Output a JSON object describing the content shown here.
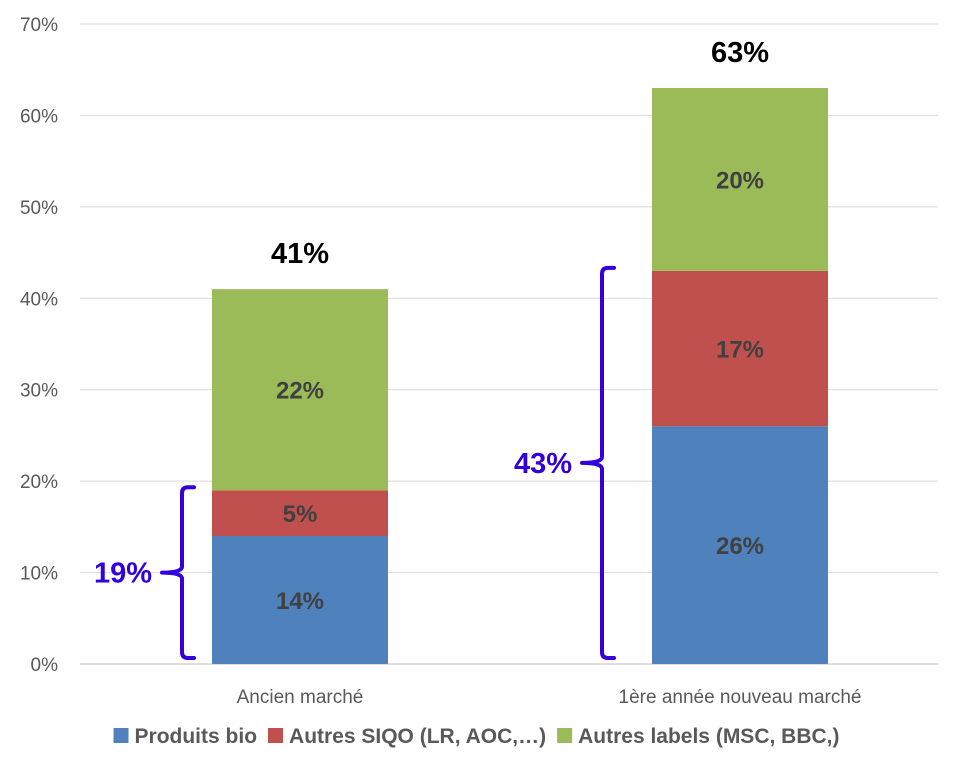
{
  "chart_data": {
    "type": "bar",
    "stacked": true,
    "categories": [
      "Ancien marché",
      "1ère année nouveau marché"
    ],
    "series": [
      {
        "name": "Produits bio",
        "values": [
          14,
          26
        ],
        "color": "#4f81bd",
        "labels": [
          "14%",
          "26%"
        ]
      },
      {
        "name": "Autres SIQO (LR, AOC,…)",
        "values": [
          5,
          17
        ],
        "color": "#c0504d",
        "labels": [
          "5%",
          "17%"
        ]
      },
      {
        "name": "Autres labels (MSC, BBC,)",
        "values": [
          22,
          20
        ],
        "color": "#9bbb59",
        "labels": [
          "22%",
          "20%"
        ]
      }
    ],
    "totals": [
      "41%",
      "63%"
    ],
    "annotations": [
      {
        "text": "19%",
        "category": "Ancien marché",
        "from": 0,
        "to": 19,
        "color": "#3300dd"
      },
      {
        "text": "43%",
        "category": "1ère année nouveau marché",
        "from": 0,
        "to": 43,
        "color": "#3300dd"
      }
    ],
    "ylim": [
      0,
      70
    ],
    "yticks": [
      "0%",
      "10%",
      "20%",
      "30%",
      "40%",
      "50%",
      "60%",
      "70%"
    ],
    "grid": true,
    "legend_position": "bottom"
  }
}
